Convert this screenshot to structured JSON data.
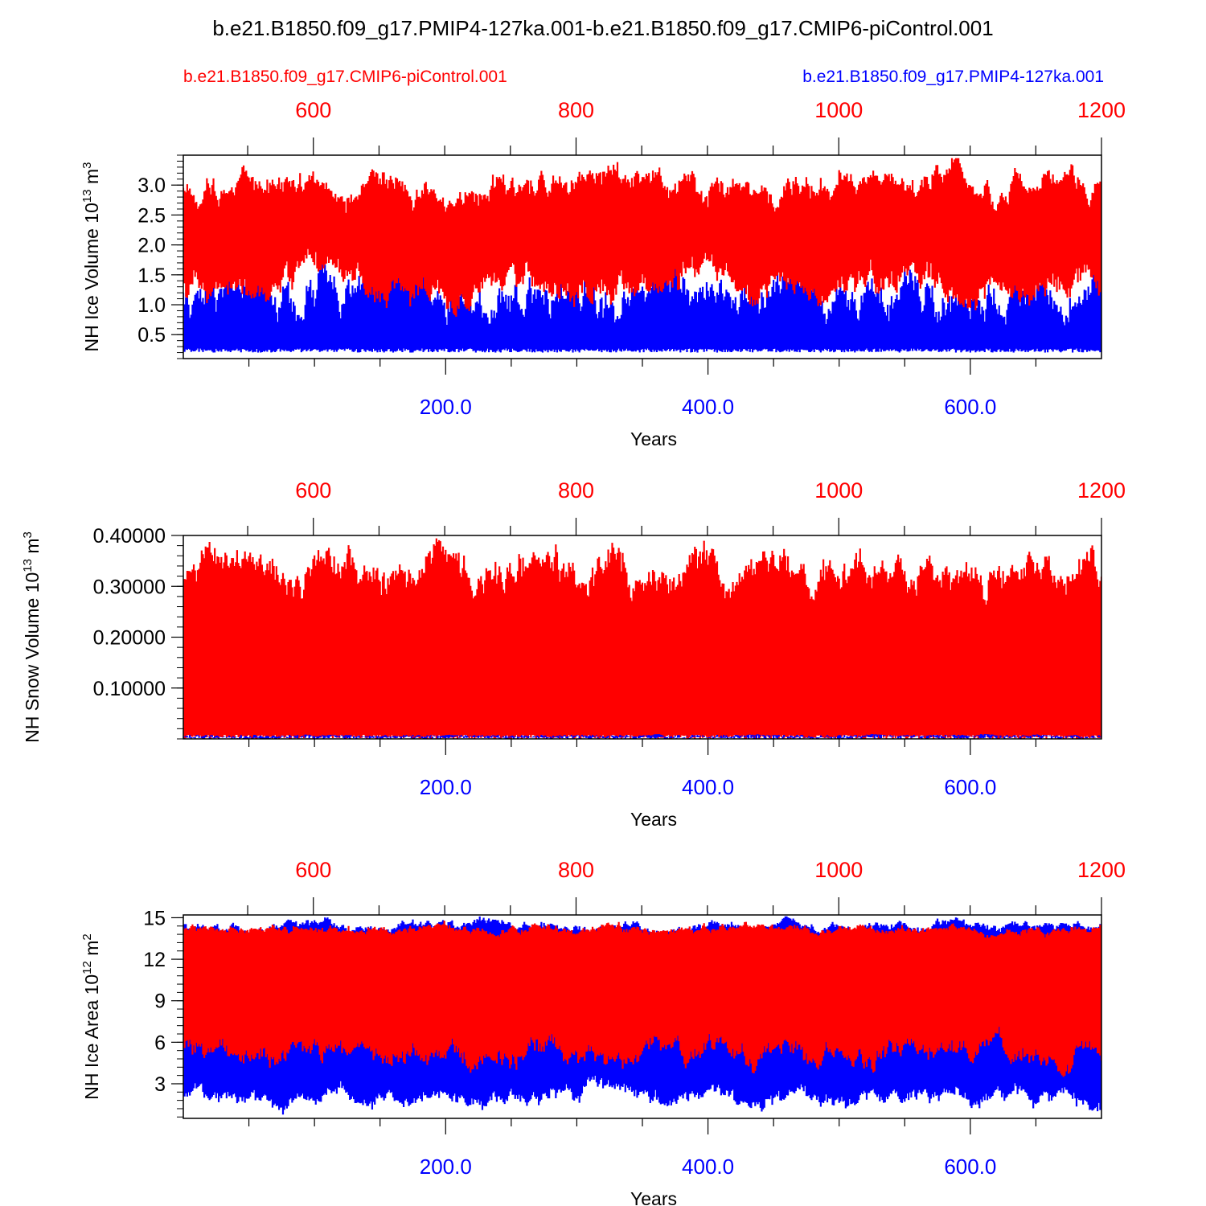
{
  "title": "b.e21.B1850.f09_g17.PMIP4-127ka.001-b.e21.B1850.f09_g17.CMIP6-piControl.001",
  "legend": {
    "red_label": "b.e21.B1850.f09_g17.CMIP6-piControl.001",
    "blue_label": "b.e21.B1850.f09_g17.PMIP4-127ka.001"
  },
  "colors": {
    "red": "#ff0000",
    "blue": "#0000ff",
    "black": "#000000"
  },
  "chart_data": [
    {
      "type": "line",
      "ylabel": "NH Ice Volume 10",
      "ylabel_sup": "13",
      "ylabel_unit": " m",
      "ylabel_unit_sup": "3",
      "xlabel": "Years",
      "ylim": [
        0.1,
        3.5
      ],
      "yticks": [
        "0.5",
        "1.0",
        "1.5",
        "2.0",
        "2.5",
        "3.0"
      ],
      "yticks_values": [
        0.5,
        1.0,
        1.5,
        2.0,
        2.5,
        3.0
      ],
      "x_bottom": {
        "range": [
          0,
          700
        ],
        "ticks": [
          "200.0",
          "400.0",
          "600.0"
        ],
        "tick_values": [
          200,
          400,
          600
        ]
      },
      "x_top": {
        "range": [
          501,
          1200
        ],
        "ticks": [
          "600",
          "800",
          "1000",
          "1200"
        ],
        "tick_values": [
          600,
          800,
          1000,
          1200
        ]
      },
      "series": [
        {
          "color": "blue",
          "annual_min": 0.2,
          "annual_max_mean": 1.25,
          "annual_max_peak": 1.95
        },
        {
          "color": "red",
          "annual_min_mean": 1.3,
          "annual_min_low": 0.8,
          "annual_max_mean": 3.0,
          "annual_max_peak": 3.45
        }
      ]
    },
    {
      "type": "line",
      "ylabel": "NH Snow Volume 10",
      "ylabel_sup": "13",
      "ylabel_unit": " m",
      "ylabel_unit_sup": "3",
      "xlabel": "Years",
      "ylim": [
        0.0,
        0.4
      ],
      "yticks": [
        "0.10000",
        "0.20000",
        "0.30000",
        "0.40000"
      ],
      "yticks_values": [
        0.1,
        0.2,
        0.3,
        0.4
      ],
      "x_bottom": {
        "range": [
          0,
          700
        ],
        "ticks": [
          "200.0",
          "400.0",
          "600.0"
        ],
        "tick_values": [
          200,
          400,
          600
        ]
      },
      "x_top": {
        "range": [
          501,
          1200
        ],
        "ticks": [
          "600",
          "800",
          "1000",
          "1200"
        ],
        "tick_values": [
          600,
          800,
          1000,
          1200
        ]
      },
      "series": [
        {
          "color": "red",
          "annual_min": 0.0,
          "annual_max_mean": 0.33,
          "annual_max_peak": 0.4
        },
        {
          "color": "blue",
          "annual_min": 0.0,
          "annual_max_mean": 0.005,
          "annual_max_peak": 0.01
        }
      ]
    },
    {
      "type": "line",
      "ylabel": "NH Ice Area 10",
      "ylabel_sup": "12",
      "ylabel_unit": " m",
      "ylabel_unit_sup": "2",
      "xlabel": "Years",
      "ylim": [
        0.5,
        15.2
      ],
      "yticks": [
        "3",
        "6",
        "9",
        "12",
        "15"
      ],
      "yticks_values": [
        3,
        6,
        9,
        12,
        15
      ],
      "x_bottom": {
        "range": [
          0,
          700
        ],
        "ticks": [
          "200.0",
          "400.0",
          "600.0"
        ],
        "tick_values": [
          200,
          400,
          600
        ]
      },
      "x_top": {
        "range": [
          501,
          1200
        ],
        "ticks": [
          "600",
          "800",
          "1000",
          "1200"
        ],
        "tick_values": [
          600,
          800,
          1000,
          1200
        ]
      },
      "series": [
        {
          "color": "blue",
          "annual_min_mean": 2.0,
          "annual_min_low": 0.7,
          "annual_max_mean": 14.4,
          "annual_max_peak": 15.1
        },
        {
          "color": "red",
          "annual_min_mean": 5.2,
          "annual_min_low": 3.5,
          "annual_max_mean": 14.2,
          "annual_max_peak": 14.8
        }
      ]
    }
  ]
}
